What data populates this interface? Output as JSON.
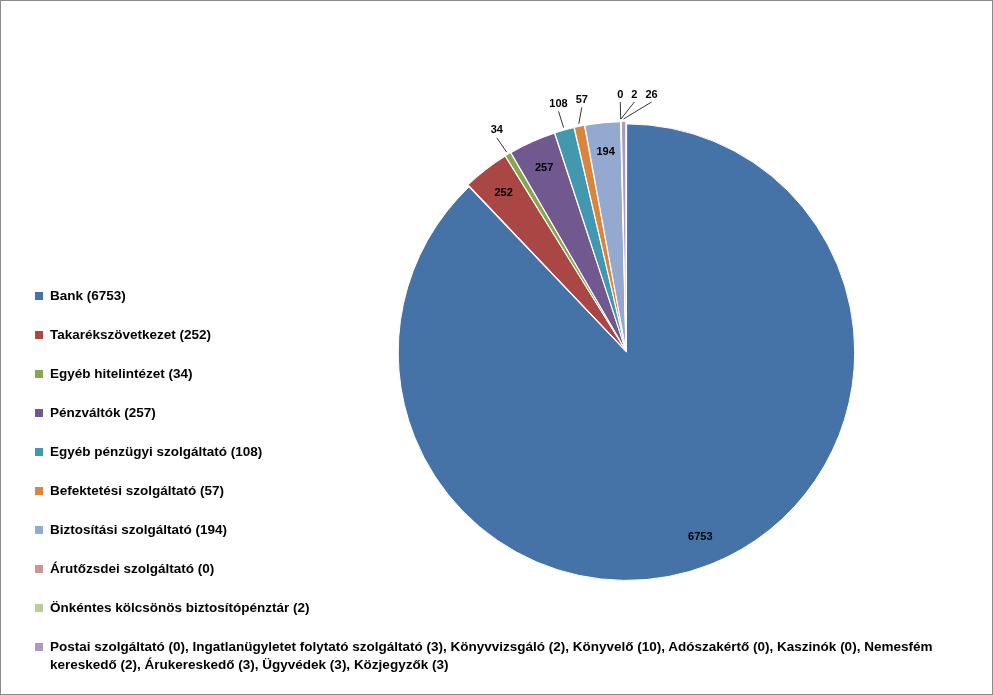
{
  "chart_data": {
    "type": "pie",
    "categories": [
      "Bank (6753)",
      "Takarékszövetkezet (252)",
      "Egyéb hitelintézet (34)",
      "Pénzváltók (257)",
      "Egyéb pénzügyi szolgáltató (108)",
      "Befektetési szolgáltató (57)",
      "Biztosítási szolgáltató (194)",
      "Árutőzsdei szolgáltató (0)",
      "Önkéntes kölcsönös biztosítópénztár (2)",
      "Postai szolgáltató (0), Ingatlanügyletet folytató szolgáltató (3), Könyvvizsgáló (2), Könyvelő (10), Adószakértő (0), Kaszinók (0), Nemesfém kereskedő (2), Árukereskedő (3), Ügyvédek (3), Közjegyzők (3)"
    ],
    "values": [
      6753,
      252,
      34,
      257,
      108,
      57,
      194,
      0,
      2,
      26
    ],
    "colors": [
      "#4573a7",
      "#aa4643",
      "#89a54e",
      "#71588f",
      "#4198af",
      "#db843d",
      "#93a9cf",
      "#d19392",
      "#b9cd96",
      "#a99bbd"
    ],
    "data_labels": true,
    "legend": "left"
  }
}
